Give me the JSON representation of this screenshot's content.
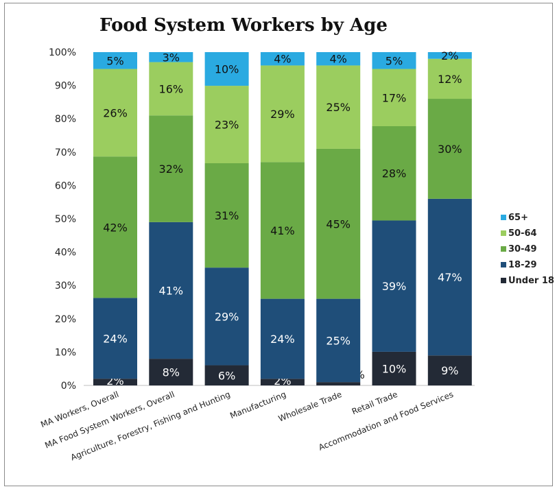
{
  "chart_data": {
    "type": "bar",
    "stacked": true,
    "title": "Food System Workers by Age",
    "xlabel": "",
    "ylabel": "",
    "ylim": [
      0,
      100
    ],
    "yticks": [
      "0%",
      "10%",
      "20%",
      "30%",
      "40%",
      "50%",
      "60%",
      "70%",
      "80%",
      "90%",
      "100%"
    ],
    "grid": false,
    "legend": "right",
    "categories": [
      "MA Workers, Overall",
      "MA Food System Workers, Overall",
      "Agriculture, Forestry, Fishing and Hunting",
      "Manufacturing",
      "Wholesale Trade",
      "Retail Trade",
      "Accommodation and Food Services"
    ],
    "series": [
      {
        "name": "Under 18",
        "color": "#232a36",
        "values": [
          2,
          8,
          6,
          2,
          1,
          10,
          9
        ],
        "labels": [
          "2%",
          "8%",
          "6%",
          "2%",
          "1%",
          "10%",
          "9%"
        ]
      },
      {
        "name": "18-29",
        "color": "#1f4e79",
        "values": [
          24,
          41,
          29,
          24,
          25,
          39,
          47
        ],
        "labels": [
          "24%",
          "41%",
          "29%",
          "24%",
          "25%",
          "39%",
          "47%"
        ]
      },
      {
        "name": "30-49",
        "color": "#6aaa46",
        "values": [
          42,
          32,
          31,
          41,
          45,
          28,
          30
        ],
        "labels": [
          "42%",
          "32%",
          "31%",
          "41%",
          "45%",
          "28%",
          "30%"
        ]
      },
      {
        "name": "50-64",
        "color": "#9bcd5f",
        "values": [
          26,
          16,
          23,
          29,
          25,
          17,
          12
        ],
        "labels": [
          "26%",
          "16%",
          "23%",
          "29%",
          "25%",
          "17%",
          "12%"
        ]
      },
      {
        "name": "65+",
        "color": "#2aaae1",
        "values": [
          5,
          3,
          10,
          4,
          4,
          5,
          2
        ],
        "labels": [
          "5%",
          "3%",
          "10%",
          "4%",
          "4%",
          "5%",
          "2%"
        ]
      }
    ],
    "legend_order": [
      "65+",
      "50-64",
      "30-49",
      "18-29",
      "Under 18"
    ]
  }
}
